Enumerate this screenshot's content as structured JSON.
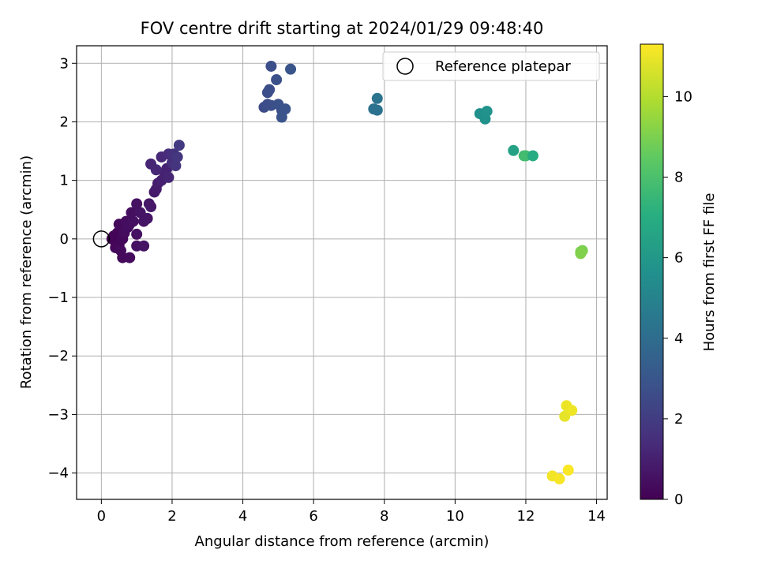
{
  "chart_data": {
    "type": "scatter",
    "title": "FOV centre drift starting at 2024/01/29 09:48:40",
    "xlabel": "Angular distance from reference (arcmin)",
    "ylabel": "Rotation from reference (arcmin)",
    "xlim": [
      -0.7,
      14.3
    ],
    "ylim": [
      -4.45,
      3.3
    ],
    "xticks": [
      0,
      2,
      4,
      6,
      8,
      10,
      12,
      14
    ],
    "yticks": [
      -4,
      -3,
      -2,
      -1,
      0,
      1,
      2,
      3
    ],
    "xtick_labels": [
      "0",
      "2",
      "4",
      "6",
      "8",
      "10",
      "12",
      "14"
    ],
    "ytick_labels": [
      "−4",
      "−3",
      "−2",
      "−1",
      "0",
      "1",
      "2",
      "3"
    ],
    "grid": true,
    "colormap": "viridis",
    "colorbar": {
      "label": "Hours from first FF file",
      "range": [
        0,
        11.3
      ],
      "ticks": [
        0,
        2,
        4,
        6,
        8,
        10
      ],
      "tick_labels": [
        "0",
        "2",
        "4",
        "6",
        "8",
        "10"
      ]
    },
    "legend": {
      "placement": "top-right",
      "entries": [
        {
          "label": "Reference platepar",
          "marker": "open-circle"
        }
      ]
    },
    "reference_point": {
      "x": 0,
      "y": 0
    },
    "points": [
      {
        "x": 0.3,
        "y": 0.0,
        "c": 0.05
      },
      {
        "x": 0.35,
        "y": 0.05,
        "c": 0.08
      },
      {
        "x": 0.4,
        "y": -0.05,
        "c": 0.1
      },
      {
        "x": 0.45,
        "y": 0.1,
        "c": 0.12
      },
      {
        "x": 0.5,
        "y": -0.1,
        "c": 0.15
      },
      {
        "x": 0.55,
        "y": 0.2,
        "c": 0.18
      },
      {
        "x": 0.4,
        "y": -0.15,
        "c": 0.2
      },
      {
        "x": 0.6,
        "y": 0.0,
        "c": 0.22
      },
      {
        "x": 0.5,
        "y": 0.25,
        "c": 0.25
      },
      {
        "x": 0.55,
        "y": -0.2,
        "c": 0.28
      },
      {
        "x": 0.6,
        "y": -0.32,
        "c": 0.3
      },
      {
        "x": 0.8,
        "y": -0.32,
        "c": 0.33
      },
      {
        "x": 0.65,
        "y": 0.1,
        "c": 0.35
      },
      {
        "x": 0.7,
        "y": 0.3,
        "c": 0.38
      },
      {
        "x": 0.75,
        "y": 0.2,
        "c": 0.4
      },
      {
        "x": 0.8,
        "y": 0.25,
        "c": 0.42
      },
      {
        "x": 0.85,
        "y": 0.45,
        "c": 0.45
      },
      {
        "x": 0.9,
        "y": 0.3,
        "c": 0.48
      },
      {
        "x": 1.0,
        "y": 0.6,
        "c": 0.5
      },
      {
        "x": 1.0,
        "y": 0.08,
        "c": 0.52
      },
      {
        "x": 1.0,
        "y": -0.12,
        "c": 0.55
      },
      {
        "x": 1.2,
        "y": -0.12,
        "c": 0.58
      },
      {
        "x": 1.1,
        "y": 0.45,
        "c": 0.6
      },
      {
        "x": 1.2,
        "y": 0.3,
        "c": 0.62
      },
      {
        "x": 1.3,
        "y": 0.35,
        "c": 0.65
      },
      {
        "x": 1.35,
        "y": 0.6,
        "c": 0.7
      },
      {
        "x": 1.4,
        "y": 0.55,
        "c": 0.75
      },
      {
        "x": 1.5,
        "y": 0.8,
        "c": 0.8
      },
      {
        "x": 1.55,
        "y": 0.85,
        "c": 0.85
      },
      {
        "x": 1.6,
        "y": 0.95,
        "c": 0.9
      },
      {
        "x": 1.7,
        "y": 1.0,
        "c": 1.0
      },
      {
        "x": 1.8,
        "y": 1.1,
        "c": 1.05
      },
      {
        "x": 1.85,
        "y": 1.2,
        "c": 1.1
      },
      {
        "x": 1.9,
        "y": 1.05,
        "c": 1.15
      },
      {
        "x": 1.4,
        "y": 1.28,
        "c": 1.2
      },
      {
        "x": 1.55,
        "y": 1.18,
        "c": 1.25
      },
      {
        "x": 1.7,
        "y": 1.4,
        "c": 1.3
      },
      {
        "x": 1.9,
        "y": 1.45,
        "c": 1.4
      },
      {
        "x": 2.0,
        "y": 1.3,
        "c": 1.5
      },
      {
        "x": 2.05,
        "y": 1.45,
        "c": 1.6
      },
      {
        "x": 2.1,
        "y": 1.25,
        "c": 1.7
      },
      {
        "x": 2.15,
        "y": 1.4,
        "c": 1.8
      },
      {
        "x": 2.2,
        "y": 1.6,
        "c": 1.9
      },
      {
        "x": 4.6,
        "y": 2.25,
        "c": 2.6
      },
      {
        "x": 4.7,
        "y": 2.3,
        "c": 2.62
      },
      {
        "x": 4.7,
        "y": 2.5,
        "c": 2.65
      },
      {
        "x": 4.75,
        "y": 2.55,
        "c": 2.68
      },
      {
        "x": 4.8,
        "y": 2.28,
        "c": 2.7
      },
      {
        "x": 4.8,
        "y": 2.95,
        "c": 2.72
      },
      {
        "x": 4.95,
        "y": 2.72,
        "c": 2.75
      },
      {
        "x": 5.0,
        "y": 2.3,
        "c": 2.78
      },
      {
        "x": 5.1,
        "y": 2.2,
        "c": 2.8
      },
      {
        "x": 5.1,
        "y": 2.08,
        "c": 2.85
      },
      {
        "x": 5.2,
        "y": 2.22,
        "c": 2.9
      },
      {
        "x": 5.35,
        "y": 2.9,
        "c": 2.95
      },
      {
        "x": 7.7,
        "y": 2.22,
        "c": 4.2
      },
      {
        "x": 7.8,
        "y": 2.2,
        "c": 4.25
      },
      {
        "x": 7.8,
        "y": 2.4,
        "c": 4.3
      },
      {
        "x": 10.7,
        "y": 2.14,
        "c": 5.6
      },
      {
        "x": 10.85,
        "y": 2.05,
        "c": 5.65
      },
      {
        "x": 10.9,
        "y": 2.18,
        "c": 5.7
      },
      {
        "x": 11.65,
        "y": 1.51,
        "c": 6.5
      },
      {
        "x": 11.95,
        "y": 1.42,
        "c": 7.7
      },
      {
        "x": 12.0,
        "y": 1.42,
        "c": 7.8
      },
      {
        "x": 12.2,
        "y": 1.42,
        "c": 6.9
      },
      {
        "x": 13.55,
        "y": -0.22,
        "c": 8.9
      },
      {
        "x": 13.6,
        "y": -0.2,
        "c": 9.0
      },
      {
        "x": 13.55,
        "y": -0.25,
        "c": 9.1
      },
      {
        "x": 13.1,
        "y": -3.03,
        "c": 10.9
      },
      {
        "x": 13.15,
        "y": -2.85,
        "c": 11.0
      },
      {
        "x": 13.3,
        "y": -2.93,
        "c": 11.05
      },
      {
        "x": 12.75,
        "y": -4.05,
        "c": 11.1
      },
      {
        "x": 12.95,
        "y": -4.1,
        "c": 11.2
      },
      {
        "x": 13.2,
        "y": -3.95,
        "c": 11.25
      }
    ]
  }
}
